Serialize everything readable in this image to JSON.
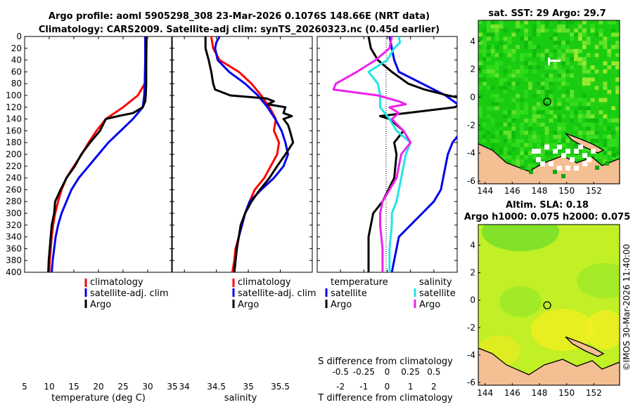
{
  "titles": {
    "line1": "Argo profile: aoml 5905298_308 23-Mar-2026 0.1076S 148.66E (NRT data)",
    "line2": "Climatology: CARS2009. Satellite-adj clim: synTS_20260323.nc (0.45d earlier)",
    "sst_title": "sat. SST: 29 Argo: 29.7",
    "sla_title1": "Altim. SLA: 0.18",
    "sla_title2": "Argo h1000: 0.075 h2000: 0.075",
    "watermark": "©IMOS 30-Mar-2026 11:40:00"
  },
  "colors": {
    "climatology": "#ff0000",
    "satellite": "#0000ee",
    "argo": "#000000",
    "sal_sat": "#22e5e5",
    "sal_clim": "#ee22ee",
    "land": "#f5bf94"
  },
  "legend": {
    "p1": [
      "climatology",
      "satellite-adj. clim",
      "Argo"
    ],
    "p3_temp_head": "temperature",
    "p3_sal_head": "salinity",
    "p3_temp": [
      "satellite",
      "Argo"
    ],
    "p3_sal": [
      "satellite",
      "Argo"
    ]
  },
  "chart_data": [
    {
      "type": "line",
      "title": "",
      "xlabel": "temperature (deg C)",
      "ylabel": "",
      "xlim": [
        5,
        35
      ],
      "ylim": [
        0,
        400
      ],
      "xticks": [
        5,
        10,
        15,
        20,
        25,
        30,
        35
      ],
      "yticks": [
        0,
        20,
        40,
        60,
        80,
        100,
        120,
        140,
        160,
        180,
        200,
        220,
        240,
        260,
        280,
        300,
        320,
        340,
        360,
        380,
        400
      ],
      "series": [
        {
          "name": "climatology",
          "color": "#ff0000",
          "depth": [
            0,
            40,
            80,
            100,
            120,
            140,
            160,
            180,
            200,
            220,
            240,
            260,
            280,
            300,
            320,
            340,
            360,
            380,
            400
          ],
          "values": [
            29.8,
            29.7,
            29.4,
            28.0,
            25.0,
            21.5,
            19.6,
            18.0,
            16.6,
            15.0,
            13.5,
            12.5,
            11.8,
            11.2,
            10.8,
            10.5,
            10.3,
            10.1,
            10.0
          ]
        },
        {
          "name": "satellite-adj. clim",
          "color": "#0000ee",
          "depth": [
            0,
            40,
            80,
            100,
            120,
            140,
            160,
            180,
            200,
            220,
            240,
            260,
            280,
            300,
            320,
            340,
            360,
            380,
            400
          ],
          "values": [
            29.5,
            29.5,
            29.4,
            29.3,
            29.0,
            27.0,
            24.5,
            22.0,
            20.0,
            18.0,
            16.0,
            14.5,
            13.5,
            12.5,
            11.8,
            11.3,
            11.0,
            10.7,
            10.5
          ]
        },
        {
          "name": "Argo",
          "color": "#000000",
          "depth": [
            0,
            40,
            80,
            100,
            110,
            120,
            130,
            135,
            140,
            160,
            180,
            200,
            220,
            240,
            260,
            280,
            300,
            320,
            340,
            360,
            380,
            400
          ],
          "values": [
            29.7,
            29.7,
            29.7,
            29.6,
            29.5,
            29.0,
            27.0,
            24.0,
            21.5,
            20.3,
            18.3,
            16.5,
            15.2,
            13.5,
            12.3,
            11.2,
            11.0,
            10.5,
            10.3,
            10.1,
            9.9,
            9.8
          ]
        }
      ]
    },
    {
      "type": "line",
      "title": "",
      "xlabel": "salinity",
      "ylabel": "",
      "xlim": [
        33.8,
        36.0
      ],
      "ylim": [
        0,
        400
      ],
      "xticks": [
        34,
        34.5,
        35,
        35.5
      ],
      "series": [
        {
          "name": "climatology",
          "color": "#ff0000",
          "depth": [
            0,
            20,
            40,
            60,
            80,
            100,
            120,
            140,
            160,
            180,
            200,
            220,
            240,
            260,
            280,
            300,
            320,
            340,
            360,
            380,
            400
          ],
          "values": [
            34.42,
            34.45,
            34.55,
            34.85,
            35.05,
            35.2,
            35.33,
            35.43,
            35.4,
            35.48,
            35.45,
            35.35,
            35.25,
            35.1,
            35.02,
            34.95,
            34.9,
            34.85,
            34.8,
            34.78,
            34.75
          ]
        },
        {
          "name": "satellite-adj. clim",
          "color": "#0000ee",
          "depth": [
            0,
            10,
            20,
            40,
            60,
            80,
            100,
            120,
            140,
            160,
            180,
            200,
            220,
            240,
            260,
            280,
            300,
            320,
            340,
            360,
            380,
            400
          ],
          "values": [
            34.55,
            34.5,
            34.48,
            34.52,
            34.7,
            34.95,
            35.15,
            35.3,
            35.42,
            35.52,
            35.58,
            35.62,
            35.55,
            35.4,
            35.2,
            35.02,
            34.95,
            34.9,
            34.85,
            34.82,
            34.8,
            34.78
          ]
        },
        {
          "name": "Argo",
          "color": "#000000",
          "depth": [
            0,
            20,
            40,
            60,
            80,
            90,
            100,
            105,
            110,
            115,
            120,
            130,
            135,
            140,
            150,
            160,
            180,
            200,
            220,
            240,
            260,
            280,
            300,
            320,
            340,
            360,
            380,
            400
          ],
          "values": [
            34.33,
            34.33,
            34.38,
            34.42,
            34.45,
            34.48,
            34.72,
            35.28,
            35.4,
            35.3,
            35.58,
            35.55,
            35.68,
            35.55,
            35.62,
            35.65,
            35.7,
            35.58,
            35.45,
            35.33,
            35.18,
            35.05,
            34.95,
            34.88,
            34.85,
            34.82,
            34.8,
            34.78
          ]
        }
      ]
    },
    {
      "type": "line",
      "title": "",
      "xlabel": "T difference from climatology",
      "xlabel_top": "S difference from climatology",
      "xlim": [
        -3,
        3
      ],
      "ylim": [
        0,
        400
      ],
      "xticks": [
        -2,
        -1,
        0,
        1,
        2
      ],
      "xticks_top": [
        "-0.5",
        "-0.25",
        "0",
        "0.25",
        "0.5"
      ],
      "series": [
        {
          "name": "satellite (temperature)",
          "color": "#0000ee",
          "depth": [
            0,
            10,
            20,
            40,
            60,
            80,
            100,
            120,
            140,
            160,
            180,
            200,
            220,
            240,
            260,
            280,
            300,
            340,
            400
          ],
          "values": [
            0.1,
            0.15,
            0.2,
            0.3,
            0.5,
            1.5,
            2.5,
            3.2,
            3.3,
            3.2,
            2.8,
            2.6,
            2.5,
            2.4,
            2.3,
            2.0,
            1.5,
            0.5,
            0.2
          ]
        },
        {
          "name": "Argo (temperature)",
          "color": "#000000",
          "depth": [
            0,
            20,
            40,
            60,
            80,
            90,
            100,
            105,
            110,
            120,
            130,
            135,
            140,
            150,
            160,
            180,
            200,
            240,
            280,
            300,
            320,
            340,
            360,
            380,
            400
          ],
          "values": [
            -0.8,
            -0.7,
            -0.4,
            0.2,
            0.9,
            1.6,
            2.6,
            3.2,
            3.3,
            2.9,
            0.8,
            -0.3,
            0.1,
            0.4,
            0.7,
            0.3,
            0.4,
            0.3,
            -0.2,
            -0.6,
            -0.7,
            -0.8,
            -0.8,
            -0.8,
            -0.8
          ]
        },
        {
          "name": "satellite (salinity)",
          "color": "#22e5e5",
          "depth": [
            0,
            10,
            20,
            40,
            60,
            80,
            100,
            120,
            140,
            160,
            180,
            200,
            240,
            280,
            300,
            320,
            360,
            400
          ],
          "values": [
            0.5,
            0.55,
            0.3,
            0.0,
            -0.8,
            -0.4,
            -0.3,
            -0.3,
            0.1,
            0.4,
            1.0,
            0.8,
            0.6,
            0.4,
            0.2,
            0.2,
            0.1,
            0.1
          ]
        },
        {
          "name": "Argo (salinity)",
          "color": "#ee22ee",
          "depth": [
            0,
            20,
            40,
            60,
            80,
            90,
            100,
            110,
            115,
            120,
            130,
            140,
            160,
            180,
            200,
            240,
            280,
            300,
            320,
            360,
            400
          ],
          "values": [
            0.2,
            0.1,
            -0.5,
            -1.3,
            -2.2,
            -2.3,
            -0.4,
            0.5,
            0.8,
            0.1,
            0.5,
            0.2,
            0.7,
            1.0,
            0.6,
            0.4,
            -0.2,
            -0.3,
            -0.3,
            -0.2,
            -0.2
          ]
        }
      ]
    },
    {
      "type": "heatmap",
      "title": "sat. SST: 29 Argo: 29.7",
      "xlim": [
        143.5,
        153.9
      ],
      "ylim": [
        -6.2,
        5.5
      ],
      "xticks": [
        144,
        146,
        148,
        150,
        152
      ],
      "yticks": [
        -6,
        -4,
        -2,
        0,
        2,
        4
      ],
      "argo_position": [
        148.66,
        -0.1076
      ]
    },
    {
      "type": "heatmap",
      "title": "Altim. SLA: 0.18",
      "xlim": [
        143.5,
        153.9
      ],
      "ylim": [
        -6.2,
        5.5
      ],
      "xticks": [
        144,
        146,
        148,
        150,
        152
      ],
      "yticks": [
        -6,
        -4,
        -2,
        0,
        2,
        4
      ],
      "argo_position": [
        148.66,
        -0.1076
      ]
    }
  ]
}
